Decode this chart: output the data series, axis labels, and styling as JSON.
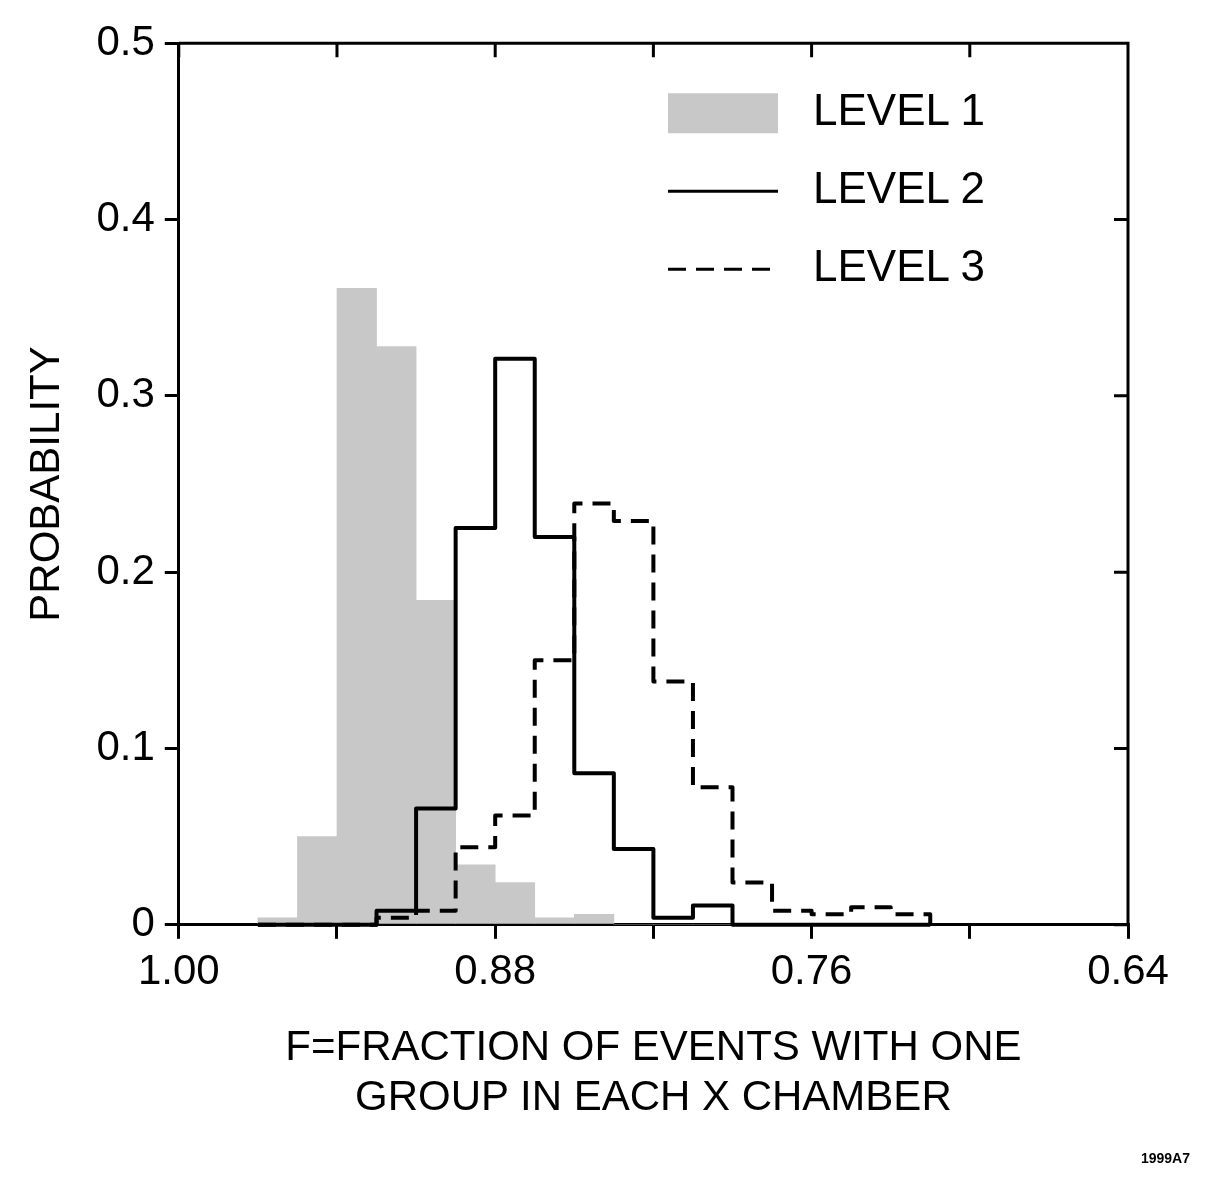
{
  "chart_data": {
    "type": "histogram",
    "xlabel": "F=FRACTION OF EVENTS WITH ONE\nGROUP IN EACH X CHAMBER",
    "ylabel": "PROBABILITY",
    "annotations": [
      "1999A7"
    ],
    "bins": [
      0.97,
      0.955,
      0.94,
      0.925,
      0.91,
      0.895,
      0.88,
      0.865,
      0.85,
      0.835,
      0.82,
      0.805,
      0.79,
      0.775,
      0.76,
      0.745,
      0.73,
      0.715
    ],
    "series": [
      {
        "name": "LEVEL 1",
        "color": "#c8c8c8",
        "line_style": "solid",
        "values": [
          0.004,
          0.05,
          0.361,
          0.328,
          0.184,
          0.034,
          0.024,
          0.004,
          0.006,
          0,
          0,
          0,
          0,
          0,
          0,
          0,
          0
        ]
      },
      {
        "name": "LEVEL 2",
        "color": "#000000",
        "line_style": "solid",
        "values": [
          0,
          0,
          0,
          0.008,
          0.066,
          0.225,
          0.321,
          0.22,
          0.086,
          0.043,
          0.004,
          0.011,
          0,
          0,
          0,
          0,
          0
        ]
      },
      {
        "name": "LEVEL 3",
        "color": "#000000",
        "line_style": "dashed",
        "values": [
          0,
          0,
          0,
          0.004,
          0.008,
          0.044,
          0.062,
          0.15,
          0.239,
          0.229,
          0.138,
          0.078,
          0.024,
          0.008,
          0.006,
          0.01,
          0.006
        ]
      }
    ],
    "xlim": [
      1.0,
      0.64
    ],
    "xticks": [
      {
        "value": 1.0,
        "label": "1.00"
      },
      {
        "value": 0.94,
        "label": null
      },
      {
        "value": 0.88,
        "label": "0.88"
      },
      {
        "value": 0.82,
        "label": null
      },
      {
        "value": 0.76,
        "label": "0.76"
      },
      {
        "value": 0.7,
        "label": null
      },
      {
        "value": 0.64,
        "label": "0.64"
      }
    ],
    "ylim": [
      0,
      0.5
    ],
    "yticks": [
      0,
      0.1,
      0.2,
      0.3,
      0.4,
      0.5
    ],
    "grid": false,
    "legend": "top right"
  }
}
